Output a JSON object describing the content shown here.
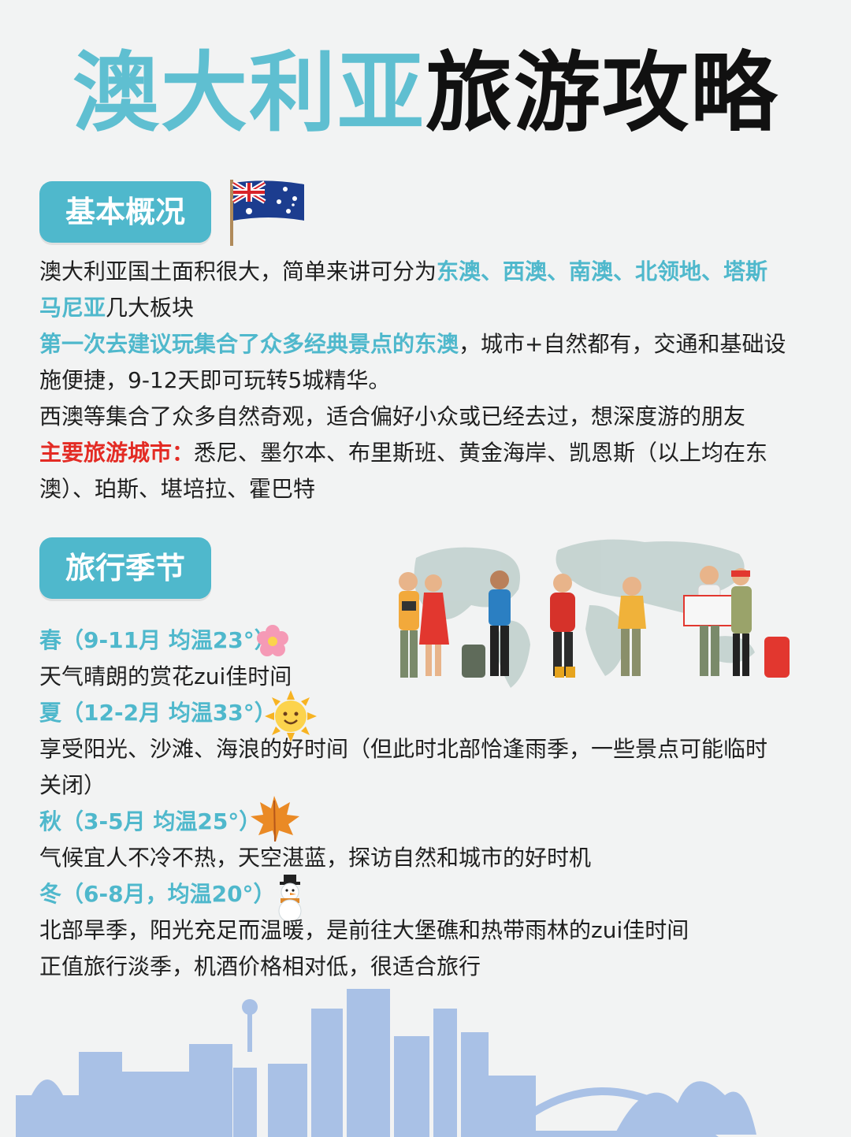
{
  "title": {
    "part1": "澳大利亚",
    "part2": "旅游攻略"
  },
  "section1": {
    "badge": "基本概况",
    "line1_a": "澳大利亚国土面积很大，简单来讲可分为",
    "line1_b": "东澳、西澳、南澳、北领地、塔斯",
    "line2_a": "马尼亚",
    "line2_b": "几大板块",
    "line3_a": "第一次去建议玩集合了众多经典景点的东澳",
    "line3_b": "，城市+自然都有，交通和基础设",
    "line4": "施便捷，9-12天即可玩转5城精华。",
    "line5": "西澳等集合了众多自然奇观，适合偏好小众或已经去过，想深度游的朋友",
    "line6_a": "主要旅游城市：",
    "line6_b": "悉尼、墨尔本、布里斯班、黄金海岸、凯恩斯（以上均在东",
    "line7": "澳）、珀斯、堪培拉、霍巴特"
  },
  "section2": {
    "badge": "旅行季节",
    "spring_title": "春（9-11月 均温23°）",
    "spring_desc": "天气晴朗的赏花zui佳时间",
    "summer_title": "夏（12-2月 均温33°）",
    "summer_desc1": "享受阳光、沙滩、海浪的好时间（但此时北部恰逢雨季，一些景点可能临时",
    "summer_desc2": "关闭）",
    "autumn_title": "秋（3-5月 均温25°）",
    "autumn_desc": "气候宜人不冷不热，天空湛蓝，探访自然和城市的好时机",
    "winter_title": "冬（6-8月，均温20°）",
    "winter_desc1": "北部旱季，阳光充足而温暖，是前往大堡礁和热带雨林的zui佳时间",
    "winter_desc2": "正值旅行淡季，机酒价格相对低，很适合旅行"
  },
  "colors": {
    "accent": "#4fb8cc",
    "highlight_red": "#e32b24",
    "skyline": "#a9c1e6"
  },
  "icons": [
    "australia-flag-icon",
    "flower-icon",
    "sun-icon",
    "maple-leaf-icon",
    "snowman-icon"
  ]
}
